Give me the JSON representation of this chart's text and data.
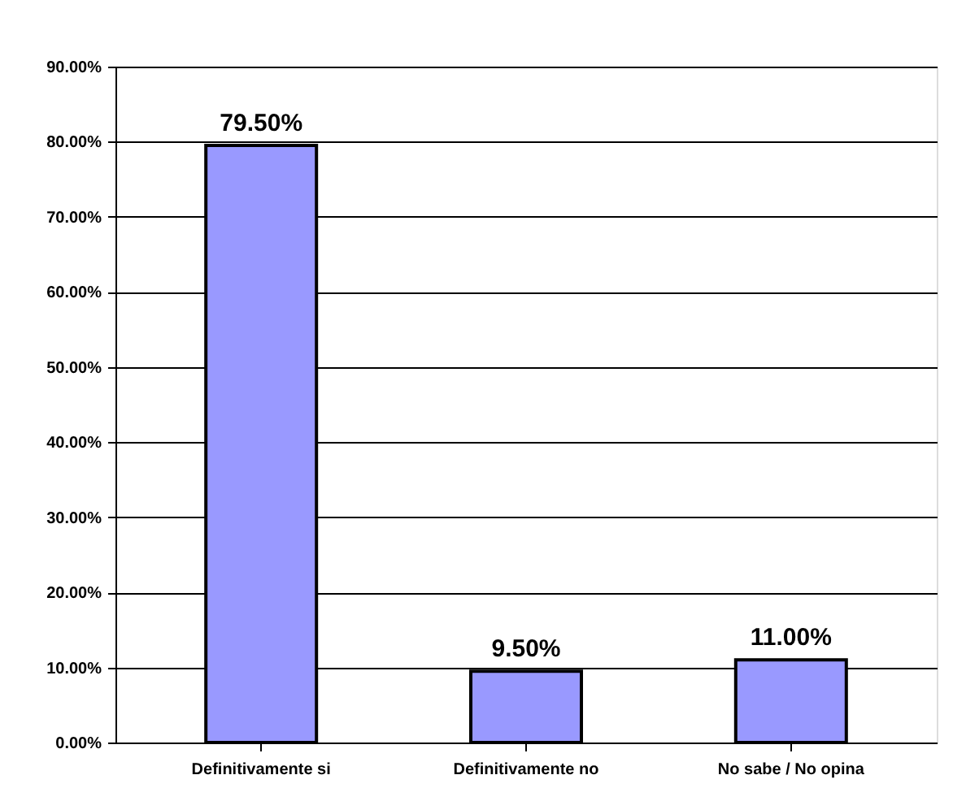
{
  "chart_data": {
    "type": "bar",
    "categories": [
      "Definitivamente si",
      "Definitivamente no",
      "No sabe / No opina"
    ],
    "values": [
      79.5,
      9.5,
      11.0
    ],
    "color": "#9999ff",
    "value_labels": [
      "79.50%",
      "9.50%",
      "11.00%"
    ],
    "ylim": [
      0,
      90
    ],
    "yticks": [
      {
        "value": 0,
        "label": "0.00%"
      },
      {
        "value": 10,
        "label": "10.00%"
      },
      {
        "value": 20,
        "label": "20.00%"
      },
      {
        "value": 30,
        "label": "30.00%"
      },
      {
        "value": 40,
        "label": "40.00%"
      },
      {
        "value": 50,
        "label": "50.00%"
      },
      {
        "value": 60,
        "label": "60.00%"
      },
      {
        "value": 70,
        "label": "70.00%"
      },
      {
        "value": 80,
        "label": "80.00%"
      },
      {
        "value": 90,
        "label": "90.00%"
      }
    ],
    "grid": "y"
  }
}
